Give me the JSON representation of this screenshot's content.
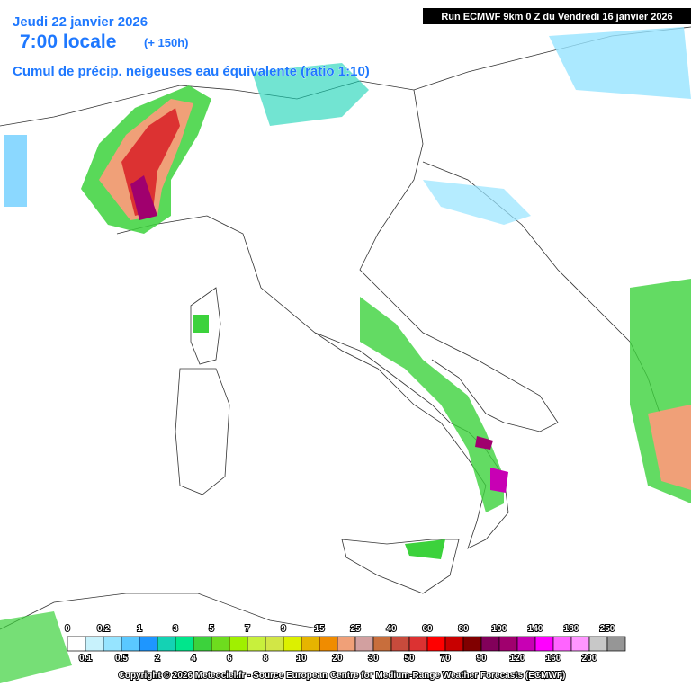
{
  "header": {
    "date": "Jeudi 22 janvier 2026",
    "time": "7:00 locale",
    "lead": "(+ 150h)",
    "product": "Cumul de précip. neigeuses  eau équivalente (ratio 1:10)",
    "run": "Run ECMWF 9km 0 Z du Vendredi 16 janvier 2026"
  },
  "legend": {
    "thresholds": [
      0,
      0.1,
      0.2,
      0.5,
      1,
      2,
      3,
      4,
      5,
      6,
      7,
      8,
      9,
      10,
      15,
      20,
      25,
      30,
      40,
      50,
      60,
      70,
      80,
      90,
      100,
      120,
      140,
      160,
      180,
      200,
      250
    ],
    "colors": [
      "#ffffff",
      "#c8f2fc",
      "#96e4ff",
      "#5ac8ff",
      "#1e96ff",
      "#14d2b4",
      "#00e68c",
      "#3cd23c",
      "#6edc1e",
      "#a0f000",
      "#c8f03c",
      "#d2e646",
      "#dcf000",
      "#e6b400",
      "#f08c00",
      "#f0a078",
      "#d2a0a0",
      "#c86e3c",
      "#c84b3c",
      "#dc3232",
      "#ff0000",
      "#c80000",
      "#800000",
      "#82005a",
      "#a0006e",
      "#c800b4",
      "#ff00ff",
      "#ff64ff",
      "#ff96ff",
      "#c8c8c8",
      "#969696"
    ]
  },
  "footer": {
    "copyright": "Copyright © 2026 Meteociel.fr - Source European Centre for Medium-Range Weather Forecasts (ECMWF)"
  }
}
